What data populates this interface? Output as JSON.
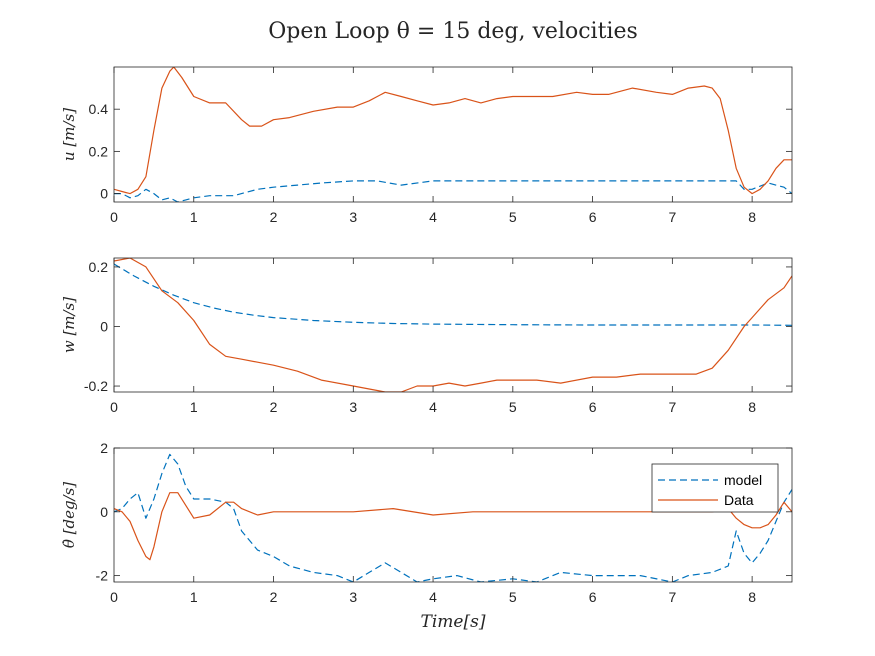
{
  "title": "Open Loop θ = 15 deg, velocities",
  "xlabel": "Time[s]",
  "colors": {
    "model": "#0072BD",
    "data": "#D95319",
    "axis": "#262626"
  },
  "legend": {
    "placement": "right",
    "entries": [
      "model",
      "Data"
    ]
  },
  "chart_data": [
    {
      "type": "line",
      "ylabel": "u [m/s]",
      "xlim": [
        0,
        8.5
      ],
      "ylim": [
        -0.04,
        0.6
      ],
      "xticks": [
        "0",
        "1",
        "2",
        "3",
        "4",
        "5",
        "6",
        "7",
        "8"
      ],
      "yticks": [
        0,
        0.2,
        0.4
      ],
      "ytick_labels": [
        "0",
        "0.2",
        "0.4"
      ],
      "series": [
        {
          "name": "model",
          "style": "dashed",
          "x": [
            0,
            0.1,
            0.2,
            0.3,
            0.4,
            0.5,
            0.6,
            0.7,
            0.8,
            0.9,
            1.0,
            1.2,
            1.5,
            1.8,
            2.0,
            2.3,
            2.6,
            3.0,
            3.3,
            3.6,
            4.0,
            4.3,
            4.6,
            5.0,
            5.5,
            6.0,
            6.5,
            7.0,
            7.3,
            7.6,
            7.8,
            7.9,
            8.0,
            8.2,
            8.4,
            8.5
          ],
          "y": [
            0.0,
            0.0,
            -0.02,
            -0.01,
            0.02,
            0.0,
            -0.03,
            -0.02,
            -0.04,
            -0.03,
            -0.02,
            -0.01,
            -0.01,
            0.02,
            0.03,
            0.04,
            0.05,
            0.06,
            0.06,
            0.04,
            0.06,
            0.06,
            0.06,
            0.06,
            0.06,
            0.06,
            0.06,
            0.06,
            0.06,
            0.06,
            0.06,
            0.02,
            0.02,
            0.05,
            0.03,
            0.0
          ]
        },
        {
          "name": "Data",
          "style": "solid",
          "x": [
            0,
            0.1,
            0.2,
            0.3,
            0.4,
            0.5,
            0.6,
            0.7,
            0.75,
            0.85,
            1.0,
            1.2,
            1.4,
            1.6,
            1.7,
            1.85,
            2.0,
            2.2,
            2.5,
            2.8,
            3.0,
            3.2,
            3.4,
            3.6,
            3.8,
            4.0,
            4.2,
            4.4,
            4.6,
            4.8,
            5.0,
            5.2,
            5.5,
            5.8,
            6.0,
            6.2,
            6.5,
            6.8,
            7.0,
            7.2,
            7.4,
            7.5,
            7.6,
            7.7,
            7.8,
            7.9,
            8.0,
            8.1,
            8.2,
            8.3,
            8.4,
            8.5
          ],
          "y": [
            0.02,
            0.01,
            0.0,
            0.02,
            0.08,
            0.3,
            0.5,
            0.58,
            0.6,
            0.55,
            0.46,
            0.43,
            0.43,
            0.35,
            0.32,
            0.32,
            0.35,
            0.36,
            0.39,
            0.41,
            0.41,
            0.44,
            0.48,
            0.46,
            0.44,
            0.42,
            0.43,
            0.45,
            0.43,
            0.45,
            0.46,
            0.46,
            0.46,
            0.48,
            0.47,
            0.47,
            0.5,
            0.48,
            0.47,
            0.5,
            0.51,
            0.5,
            0.45,
            0.3,
            0.12,
            0.03,
            0.0,
            0.02,
            0.06,
            0.12,
            0.16,
            0.16
          ]
        }
      ]
    },
    {
      "type": "line",
      "ylabel": "w [m/s]",
      "xlim": [
        0,
        8.5
      ],
      "ylim": [
        -0.22,
        0.23
      ],
      "xticks": [
        "0",
        "1",
        "2",
        "3",
        "4",
        "5",
        "6",
        "7",
        "8"
      ],
      "yticks": [
        -0.2,
        0,
        0.2
      ],
      "ytick_labels": [
        "-0.2",
        "0",
        "0.2"
      ],
      "series": [
        {
          "name": "model",
          "style": "dashed",
          "x": [
            0,
            0.25,
            0.5,
            0.75,
            1.0,
            1.25,
            1.5,
            1.75,
            2.0,
            2.5,
            3.0,
            3.5,
            4.0,
            5.0,
            6.0,
            7.0,
            8.0,
            8.5
          ],
          "y": [
            0.21,
            0.17,
            0.135,
            0.105,
            0.08,
            0.062,
            0.048,
            0.038,
            0.03,
            0.02,
            0.014,
            0.01,
            0.008,
            0.006,
            0.005,
            0.005,
            0.005,
            0.004
          ]
        },
        {
          "name": "Data",
          "style": "solid",
          "x": [
            0,
            0.2,
            0.4,
            0.6,
            0.8,
            1.0,
            1.2,
            1.4,
            1.6,
            1.8,
            2.0,
            2.3,
            2.6,
            3.0,
            3.2,
            3.4,
            3.6,
            3.8,
            4.0,
            4.2,
            4.4,
            4.6,
            4.8,
            5.0,
            5.3,
            5.6,
            6.0,
            6.3,
            6.6,
            7.0,
            7.3,
            7.5,
            7.7,
            7.9,
            8.0,
            8.2,
            8.4,
            8.5
          ],
          "y": [
            0.22,
            0.23,
            0.2,
            0.12,
            0.08,
            0.02,
            -0.06,
            -0.1,
            -0.11,
            -0.12,
            -0.13,
            -0.15,
            -0.18,
            -0.2,
            -0.21,
            -0.22,
            -0.22,
            -0.2,
            -0.2,
            -0.19,
            -0.2,
            -0.19,
            -0.18,
            -0.18,
            -0.18,
            -0.19,
            -0.17,
            -0.17,
            -0.16,
            -0.16,
            -0.16,
            -0.14,
            -0.08,
            0.0,
            0.03,
            0.09,
            0.13,
            0.17
          ]
        }
      ]
    },
    {
      "type": "line",
      "ylabel": "θ̇ [deg/s]",
      "xlim": [
        0,
        8.5
      ],
      "ylim": [
        -2.2,
        2.0
      ],
      "xticks": [
        "0",
        "1",
        "2",
        "3",
        "4",
        "5",
        "6",
        "7",
        "8"
      ],
      "yticks": [
        -2,
        0,
        2
      ],
      "ytick_labels": [
        "-2",
        "0",
        "2"
      ],
      "series": [
        {
          "name": "model",
          "style": "dashed",
          "x": [
            0,
            0.1,
            0.2,
            0.3,
            0.4,
            0.5,
            0.6,
            0.7,
            0.8,
            0.9,
            1.0,
            1.2,
            1.4,
            1.5,
            1.6,
            1.8,
            2.0,
            2.2,
            2.5,
            2.8,
            3.0,
            3.2,
            3.4,
            3.6,
            3.8,
            4.0,
            4.3,
            4.6,
            5.0,
            5.3,
            5.6,
            6.0,
            6.3,
            6.6,
            7.0,
            7.2,
            7.5,
            7.7,
            7.8,
            7.9,
            8.0,
            8.1,
            8.2,
            8.3,
            8.4,
            8.5
          ],
          "y": [
            0.0,
            0.1,
            0.4,
            0.6,
            -0.2,
            0.4,
            1.2,
            1.8,
            1.5,
            0.8,
            0.4,
            0.4,
            0.3,
            0.1,
            -0.6,
            -1.2,
            -1.4,
            -1.7,
            -1.9,
            -2.0,
            -2.2,
            -1.9,
            -1.6,
            -1.9,
            -2.2,
            -2.1,
            -2.0,
            -2.2,
            -2.1,
            -2.2,
            -1.9,
            -2.0,
            -2.0,
            -2.0,
            -2.2,
            -2.0,
            -1.9,
            -1.7,
            -0.6,
            -1.3,
            -1.6,
            -1.3,
            -0.9,
            -0.3,
            0.3,
            0.7
          ]
        },
        {
          "name": "Data",
          "style": "solid",
          "x": [
            0,
            0.1,
            0.2,
            0.3,
            0.4,
            0.45,
            0.5,
            0.6,
            0.7,
            0.8,
            0.9,
            1.0,
            1.2,
            1.4,
            1.5,
            1.6,
            1.8,
            2.0,
            2.5,
            3.0,
            3.5,
            4.0,
            4.5,
            5.0,
            5.5,
            6.0,
            6.5,
            7.0,
            7.5,
            7.7,
            7.8,
            7.9,
            8.0,
            8.1,
            8.2,
            8.3,
            8.4,
            8.5
          ],
          "y": [
            0.1,
            0.0,
            -0.3,
            -0.9,
            -1.4,
            -1.5,
            -1.1,
            0.0,
            0.6,
            0.6,
            0.2,
            -0.2,
            -0.1,
            0.3,
            0.3,
            0.1,
            -0.1,
            0.0,
            0.0,
            0.0,
            0.1,
            -0.1,
            0.0,
            0.0,
            0.0,
            0.0,
            0.0,
            0.0,
            0.0,
            0.1,
            -0.2,
            -0.4,
            -0.5,
            -0.5,
            -0.4,
            -0.1,
            0.3,
            0.0
          ]
        }
      ]
    }
  ]
}
